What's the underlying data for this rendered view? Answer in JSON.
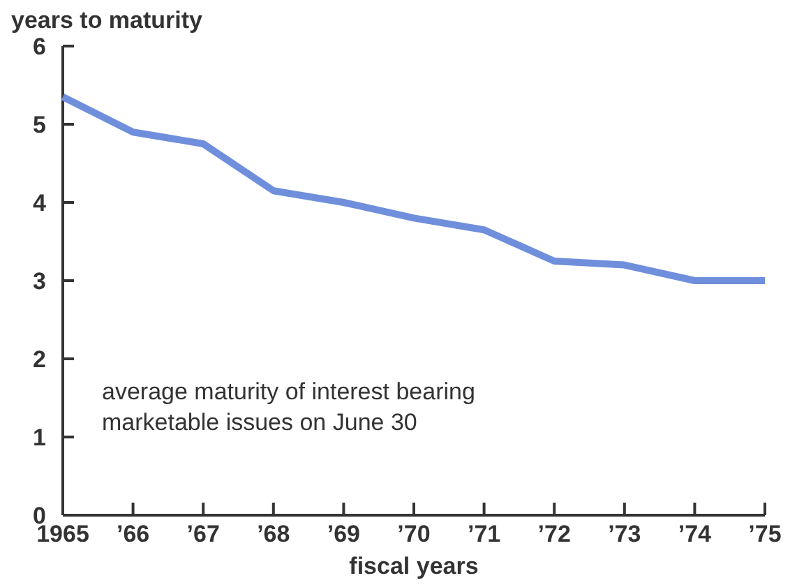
{
  "chart_data": {
    "type": "line",
    "ylabel": "years to maturity",
    "xlabel": "fiscal years",
    "x": [
      1965,
      1966,
      1967,
      1968,
      1969,
      1970,
      1971,
      1972,
      1973,
      1974,
      1975
    ],
    "series": [
      {
        "color": "#6f8fdc",
        "values": [
          5.35,
          4.9,
          4.75,
          4.15,
          4.0,
          3.8,
          3.65,
          3.25,
          3.2,
          3.0,
          3.0
        ]
      }
    ],
    "xlim": [
      1965,
      1975
    ],
    "xticks": [
      1965,
      {
        "value": 1966,
        "label": "’66"
      },
      {
        "value": 1967,
        "label": "’67"
      },
      {
        "value": 1968,
        "label": "’68"
      },
      {
        "value": 1969,
        "label": "’69"
      },
      {
        "value": 1970,
        "label": "’70"
      },
      {
        "value": 1971,
        "label": "’71"
      },
      {
        "value": 1972,
        "label": "’72"
      },
      {
        "value": 1973,
        "label": "’73"
      },
      {
        "value": 1974,
        "label": "’74"
      },
      {
        "value": 1975,
        "label": "’75"
      }
    ],
    "ylim": [
      0,
      6
    ],
    "yticks": [
      0,
      1,
      2,
      3,
      4,
      5,
      6
    ],
    "annotations": [
      "average maturity of interest bearing\nmarketable issues on June 30"
    ],
    "grid": false,
    "marker": "none",
    "line_style": "solid"
  }
}
